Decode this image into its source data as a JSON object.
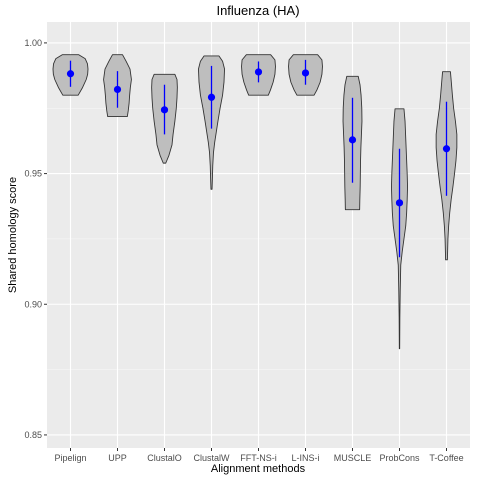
{
  "chart_data": {
    "type": "violin",
    "title": "Influenza (HA)",
    "xlabel": "Alignment methods",
    "ylabel": "Shared homology score",
    "ylim": [
      0.845,
      1.008
    ],
    "yticks": [
      0.85,
      0.9,
      0.95,
      1.0
    ],
    "ytick_labels": [
      "0.85",
      "0.90",
      "0.95",
      "1.00"
    ],
    "grid": true,
    "colors": {
      "panel": "#ebebeb",
      "grid_major": "#ffffff",
      "violin_fill": "#bebebe",
      "violin_stroke": "#333333",
      "point": "#0000ff",
      "error_bar": "#0000ff",
      "tick": "#333333",
      "tick_label": "#4d4d4d"
    },
    "categories": [
      "Pipelign",
      "UPP",
      "ClustalO",
      "ClustalW",
      "FFT-NS-i",
      "L-INS-i",
      "MUSCLE",
      "ProbCons",
      "T-Coffee"
    ],
    "series": [
      {
        "category": "Pipelign",
        "mean": 0.9882,
        "sd_low": 0.9832,
        "sd_high": 0.9932,
        "violin": [
          [
            0.98,
            0.43
          ],
          [
            0.983,
            0.68
          ],
          [
            0.986,
            0.88
          ],
          [
            0.988,
            0.96
          ],
          [
            0.99,
            0.98
          ],
          [
            0.992,
            0.95
          ],
          [
            0.994,
            0.82
          ],
          [
            0.9955,
            0.45
          ]
        ]
      },
      {
        "category": "UPP",
        "mean": 0.9822,
        "sd_low": 0.9752,
        "sd_high": 0.9892,
        "violin": [
          [
            0.9718,
            0.55
          ],
          [
            0.974,
            0.6
          ],
          [
            0.977,
            0.65
          ],
          [
            0.98,
            0.68
          ],
          [
            0.983,
            0.72
          ],
          [
            0.986,
            0.78
          ],
          [
            0.99,
            0.7
          ],
          [
            0.993,
            0.48
          ],
          [
            0.9955,
            0.28
          ]
        ]
      },
      {
        "category": "ClustalO",
        "mean": 0.9744,
        "sd_low": 0.965,
        "sd_high": 0.984,
        "violin": [
          [
            0.954,
            0.07
          ],
          [
            0.957,
            0.25
          ],
          [
            0.961,
            0.42
          ],
          [
            0.965,
            0.48
          ],
          [
            0.97,
            0.58
          ],
          [
            0.975,
            0.66
          ],
          [
            0.979,
            0.7
          ],
          [
            0.983,
            0.72
          ],
          [
            0.986,
            0.7
          ],
          [
            0.988,
            0.58
          ]
        ]
      },
      {
        "category": "ClustalW",
        "mean": 0.9792,
        "sd_low": 0.9672,
        "sd_high": 0.9912,
        "violin": [
          [
            0.944,
            0.03
          ],
          [
            0.948,
            0.05
          ],
          [
            0.953,
            0.07
          ],
          [
            0.958,
            0.11
          ],
          [
            0.962,
            0.18
          ],
          [
            0.966,
            0.27
          ],
          [
            0.97,
            0.36
          ],
          [
            0.975,
            0.48
          ],
          [
            0.98,
            0.62
          ],
          [
            0.985,
            0.7
          ],
          [
            0.99,
            0.73
          ],
          [
            0.993,
            0.62
          ],
          [
            0.995,
            0.42
          ]
        ]
      },
      {
        "category": "FFT-NS-i",
        "mean": 0.9889,
        "sd_low": 0.9849,
        "sd_high": 0.9929,
        "violin": [
          [
            0.98,
            0.55
          ],
          [
            0.982,
            0.67
          ],
          [
            0.985,
            0.82
          ],
          [
            0.988,
            0.92
          ],
          [
            0.991,
            0.95
          ],
          [
            0.9935,
            0.92
          ],
          [
            0.9955,
            0.68
          ]
        ]
      },
      {
        "category": "L-INS-i",
        "mean": 0.9885,
        "sd_low": 0.984,
        "sd_high": 0.9935,
        "violin": [
          [
            0.98,
            0.48
          ],
          [
            0.982,
            0.64
          ],
          [
            0.985,
            0.82
          ],
          [
            0.988,
            0.92
          ],
          [
            0.991,
            0.95
          ],
          [
            0.9935,
            0.92
          ],
          [
            0.9955,
            0.68
          ]
        ]
      },
      {
        "category": "MUSCLE",
        "mean": 0.9629,
        "sd_low": 0.9465,
        "sd_high": 0.979,
        "violin": [
          [
            0.9362,
            0.4
          ],
          [
            0.94,
            0.41
          ],
          [
            0.945,
            0.43
          ],
          [
            0.95,
            0.44
          ],
          [
            0.955,
            0.45
          ],
          [
            0.96,
            0.47
          ],
          [
            0.965,
            0.5
          ],
          [
            0.97,
            0.53
          ],
          [
            0.975,
            0.52
          ],
          [
            0.98,
            0.48
          ],
          [
            0.984,
            0.42
          ],
          [
            0.9872,
            0.32
          ]
        ]
      },
      {
        "category": "ProbCons",
        "mean": 0.9388,
        "sd_low": 0.918,
        "sd_high": 0.9595,
        "violin": [
          [
            0.883,
            0.01
          ],
          [
            0.895,
            0.02
          ],
          [
            0.905,
            0.04
          ],
          [
            0.915,
            0.07
          ],
          [
            0.92,
            0.15
          ],
          [
            0.925,
            0.25
          ],
          [
            0.93,
            0.35
          ],
          [
            0.935,
            0.4
          ],
          [
            0.94,
            0.43
          ],
          [
            0.945,
            0.45
          ],
          [
            0.95,
            0.43
          ],
          [
            0.955,
            0.4
          ],
          [
            0.96,
            0.37
          ],
          [
            0.965,
            0.34
          ],
          [
            0.97,
            0.31
          ],
          [
            0.9748,
            0.25
          ]
        ]
      },
      {
        "category": "T-Coffee",
        "mean": 0.9595,
        "sd_low": 0.9415,
        "sd_high": 0.9775,
        "violin": [
          [
            0.917,
            0.05
          ],
          [
            0.925,
            0.08
          ],
          [
            0.93,
            0.12
          ],
          [
            0.935,
            0.18
          ],
          [
            0.94,
            0.26
          ],
          [
            0.945,
            0.36
          ],
          [
            0.95,
            0.45
          ],
          [
            0.955,
            0.53
          ],
          [
            0.96,
            0.58
          ],
          [
            0.965,
            0.58
          ],
          [
            0.97,
            0.5
          ],
          [
            0.975,
            0.4
          ],
          [
            0.98,
            0.33
          ],
          [
            0.985,
            0.27
          ],
          [
            0.989,
            0.22
          ]
        ]
      }
    ]
  }
}
